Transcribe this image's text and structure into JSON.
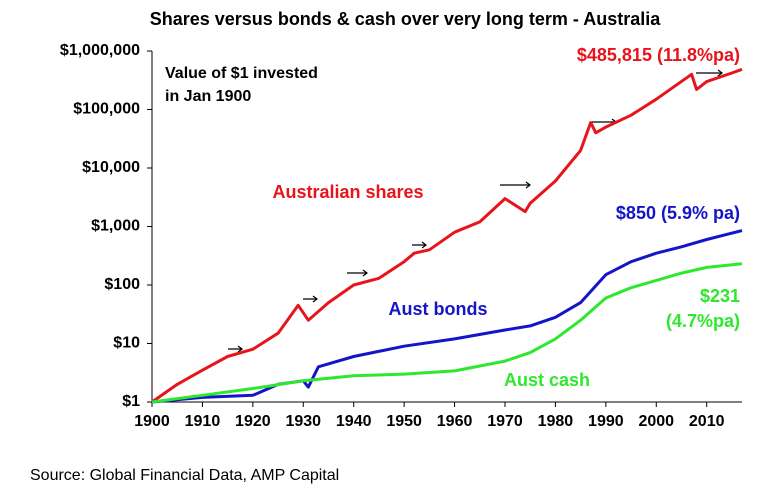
{
  "chart_data": {
    "type": "line",
    "title": "Shares versus bonds & cash over very long term - Australia",
    "source": "Source: Global Financial Data, AMP Capital",
    "log_scale": true,
    "xlim": [
      1900,
      2017
    ],
    "xticks": [
      1900,
      1910,
      1920,
      1930,
      1940,
      1950,
      1960,
      1970,
      1980,
      1990,
      2000,
      2010
    ],
    "ylim": [
      1,
      1000000
    ],
    "yticks": [
      {
        "value": 1,
        "label": "$1"
      },
      {
        "value": 10,
        "label": "$10"
      },
      {
        "value": 100,
        "label": "$100"
      },
      {
        "value": 1000,
        "label": "$1,000"
      },
      {
        "value": 10000,
        "label": "$10,000"
      },
      {
        "value": 100000,
        "label": "$100,000"
      },
      {
        "value": 1000000,
        "label": "$1,000,000"
      }
    ],
    "series": [
      {
        "name": "Australian shares",
        "color": "#e8141c",
        "x": [
          1900,
          1905,
          1910,
          1915,
          1920,
          1925,
          1929,
          1931,
          1935,
          1940,
          1945,
          1950,
          1952,
          1955,
          1960,
          1965,
          1970,
          1974,
          1975,
          1980,
          1985,
          1987,
          1988,
          1990,
          1995,
          2000,
          2007,
          2008,
          2010,
          2015,
          2017
        ],
        "values": [
          1,
          2,
          3.5,
          6,
          8,
          15,
          45,
          25,
          50,
          100,
          130,
          250,
          350,
          400,
          800,
          1200,
          3000,
          1800,
          2500,
          6000,
          20000,
          60000,
          40000,
          50000,
          80000,
          150000,
          400000,
          220000,
          300000,
          420000,
          485815
        ]
      },
      {
        "name": "Aust bonds",
        "color": "#1414c8",
        "x": [
          1900,
          1910,
          1920,
          1925,
          1930,
          1931,
          1933,
          1940,
          1950,
          1960,
          1970,
          1975,
          1980,
          1985,
          1990,
          1995,
          2000,
          2005,
          2010,
          2017
        ],
        "values": [
          1,
          1.2,
          1.3,
          2,
          2.3,
          1.8,
          4,
          6,
          9,
          12,
          17,
          20,
          28,
          50,
          150,
          250,
          350,
          450,
          600,
          850
        ]
      },
      {
        "name": "Aust cash",
        "color": "#2ee82e",
        "x": [
          1900,
          1910,
          1920,
          1930,
          1940,
          1950,
          1960,
          1970,
          1975,
          1980,
          1985,
          1990,
          1995,
          2000,
          2005,
          2010,
          2017
        ],
        "values": [
          1,
          1.3,
          1.7,
          2.3,
          2.8,
          3.0,
          3.4,
          5,
          7,
          12,
          25,
          60,
          90,
          120,
          160,
          200,
          231
        ]
      }
    ],
    "annotations": [
      {
        "text": "Value of $1 invested",
        "color": "#000000"
      },
      {
        "text": "in Jan 1900",
        "color": "#000000"
      },
      {
        "text": "$485,815 (11.8%pa)",
        "color": "#e8141c"
      },
      {
        "text": "$850 (5.9% pa)",
        "color": "#1414c8"
      },
      {
        "text": "$231",
        "color": "#2ee82e"
      },
      {
        "text": "(4.7%pa)",
        "color": "#2ee82e"
      }
    ]
  }
}
